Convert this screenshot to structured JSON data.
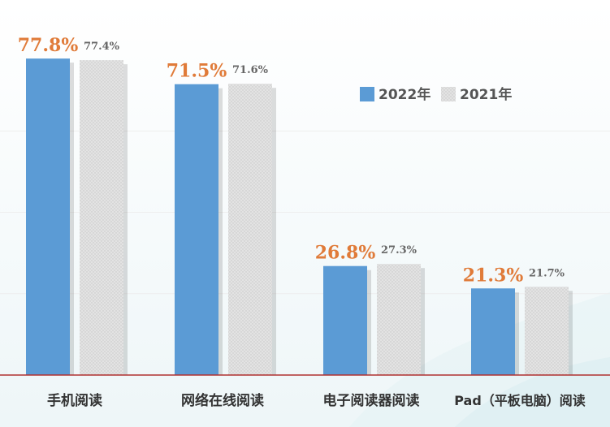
{
  "chart_data": {
    "type": "bar",
    "categories": [
      "手机阅读",
      "网络在线阅读",
      "电子阅读器阅读",
      "Pad（平板电脑）阅读"
    ],
    "series": [
      {
        "name": "2022年",
        "values": [
          77.8,
          71.5,
          26.8,
          21.3
        ],
        "labels": [
          "77.8%",
          "71.5%",
          "26.8%",
          "21.3%"
        ],
        "color": "#5b9bd5"
      },
      {
        "name": "2021年",
        "values": [
          77.4,
          71.6,
          27.3,
          21.7
        ],
        "labels": [
          "77.4%",
          "71.6%",
          "27.3%",
          "21.7%"
        ],
        "color": "#dcdcdc"
      }
    ],
    "ylim": [
      0,
      90
    ],
    "value_unit": "%",
    "title": "",
    "xlabel": "",
    "ylabel": "",
    "legend_position": "top-right",
    "grid": true,
    "colors": {
      "highlight_label": "#e07b39",
      "secondary_label": "#666666",
      "baseline": "#b03030",
      "category_text": "#333333",
      "gridline": "#eeeeee"
    }
  }
}
